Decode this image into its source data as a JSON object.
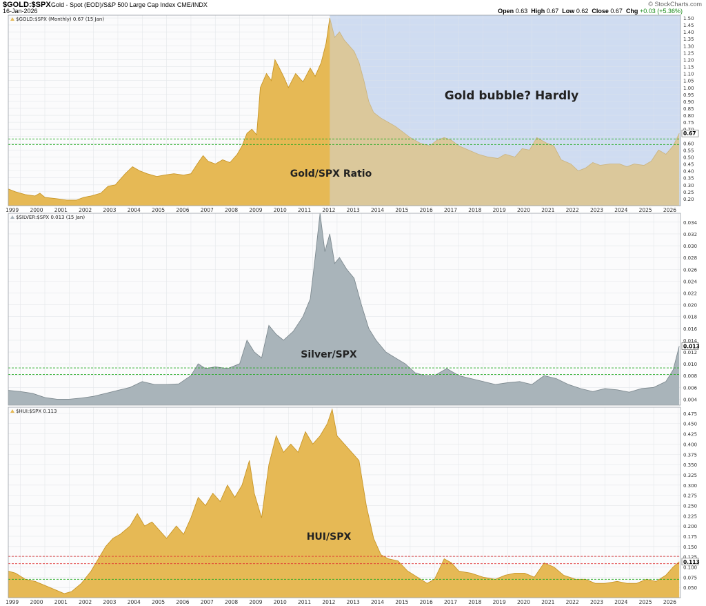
{
  "header": {
    "symbol": "$GOLD:$SPX",
    "description": "Gold - Spot (EOD)/S&P 500 Large Cap Index  CME/INDX",
    "date": "16-Jan-2026",
    "brand": "© StockCharts.com",
    "ohlc": {
      "open_label": "Open",
      "open": "0.63",
      "high_label": "High",
      "high": "0.67",
      "low_label": "Low",
      "low": "0.62",
      "close_label": "Close",
      "close": "0.67",
      "chg_label": "Chg",
      "chg": "+0.03 (+5.36%)"
    }
  },
  "colors": {
    "gold_fill": "#e6b955",
    "gold_line": "#c89628",
    "silver_fill": "#a9b4ba",
    "silver_line": "#7e8a90",
    "blue_shade": "#cfdcf1",
    "green_dashed": "#22aa22",
    "red_dashed": "#e03030",
    "panel_bg": "#fbfbfc",
    "grid": "#e4e7ea"
  },
  "chart_data": [
    {
      "type": "area",
      "legend": "$GOLD:$SPX (Monthly) 0.67 (15 Jan)",
      "annotation": "Gold bubble? Hardly",
      "label": "Gold/SPX Ratio",
      "last_value": "0.67",
      "y_range": [
        0.15,
        1.52
      ],
      "y_ticks": [
        "0.20",
        "0.25",
        "0.30",
        "0.35",
        "0.40",
        "0.45",
        "0.50",
        "0.55",
        "0.60",
        "0.65",
        "0.70",
        "0.75",
        "0.80",
        "0.85",
        "0.90",
        "0.95",
        "1.00",
        "1.05",
        "1.10",
        "1.15",
        "1.20",
        "1.25",
        "1.30",
        "1.35",
        "1.40",
        "1.45",
        "1.50"
      ],
      "shade_from": 2011.7,
      "green_lines": [
        0.59,
        0.63
      ],
      "red_lines": [],
      "points": [
        [
          1998.5,
          0.27
        ],
        [
          1998.8,
          0.25
        ],
        [
          1999.2,
          0.23
        ],
        [
          1999.6,
          0.22
        ],
        [
          1999.8,
          0.24
        ],
        [
          2000.0,
          0.21
        ],
        [
          2000.5,
          0.2
        ],
        [
          2000.9,
          0.19
        ],
        [
          2001.3,
          0.19
        ],
        [
          2001.6,
          0.21
        ],
        [
          2001.9,
          0.22
        ],
        [
          2002.3,
          0.24
        ],
        [
          2002.6,
          0.29
        ],
        [
          2002.9,
          0.3
        ],
        [
          2003.1,
          0.34
        ],
        [
          2003.3,
          0.38
        ],
        [
          2003.6,
          0.43
        ],
        [
          2003.9,
          0.4
        ],
        [
          2004.2,
          0.38
        ],
        [
          2004.6,
          0.36
        ],
        [
          2004.9,
          0.37
        ],
        [
          2005.3,
          0.38
        ],
        [
          2005.7,
          0.37
        ],
        [
          2006.0,
          0.38
        ],
        [
          2006.3,
          0.46
        ],
        [
          2006.5,
          0.51
        ],
        [
          2006.7,
          0.47
        ],
        [
          2007.0,
          0.45
        ],
        [
          2007.3,
          0.48
        ],
        [
          2007.6,
          0.46
        ],
        [
          2007.9,
          0.52
        ],
        [
          2008.1,
          0.58
        ],
        [
          2008.3,
          0.67
        ],
        [
          2008.5,
          0.7
        ],
        [
          2008.7,
          0.66
        ],
        [
          2008.85,
          1.0
        ],
        [
          2009.1,
          1.1
        ],
        [
          2009.3,
          1.05
        ],
        [
          2009.45,
          1.2
        ],
        [
          2009.6,
          1.15
        ],
        [
          2009.8,
          1.08
        ],
        [
          2010.0,
          1.0
        ],
        [
          2010.3,
          1.1
        ],
        [
          2010.6,
          1.04
        ],
        [
          2010.9,
          1.14
        ],
        [
          2011.1,
          1.08
        ],
        [
          2011.35,
          1.18
        ],
        [
          2011.55,
          1.32
        ],
        [
          2011.7,
          1.5
        ],
        [
          2011.9,
          1.36
        ],
        [
          2012.1,
          1.4
        ],
        [
          2012.3,
          1.34
        ],
        [
          2012.5,
          1.3
        ],
        [
          2012.7,
          1.26
        ],
        [
          2012.9,
          1.18
        ],
        [
          2013.1,
          1.05
        ],
        [
          2013.3,
          0.9
        ],
        [
          2013.5,
          0.82
        ],
        [
          2013.8,
          0.78
        ],
        [
          2014.1,
          0.75
        ],
        [
          2014.4,
          0.72
        ],
        [
          2014.7,
          0.68
        ],
        [
          2015.0,
          0.64
        ],
        [
          2015.4,
          0.6
        ],
        [
          2015.8,
          0.58
        ],
        [
          2016.1,
          0.62
        ],
        [
          2016.4,
          0.64
        ],
        [
          2016.7,
          0.62
        ],
        [
          2017.0,
          0.58
        ],
        [
          2017.4,
          0.55
        ],
        [
          2017.8,
          0.52
        ],
        [
          2018.2,
          0.5
        ],
        [
          2018.6,
          0.49
        ],
        [
          2018.9,
          0.52
        ],
        [
          2019.3,
          0.5
        ],
        [
          2019.6,
          0.56
        ],
        [
          2019.9,
          0.55
        ],
        [
          2020.2,
          0.64
        ],
        [
          2020.6,
          0.6
        ],
        [
          2020.9,
          0.58
        ],
        [
          2021.2,
          0.48
        ],
        [
          2021.6,
          0.45
        ],
        [
          2021.9,
          0.4
        ],
        [
          2022.2,
          0.42
        ],
        [
          2022.5,
          0.46
        ],
        [
          2022.8,
          0.44
        ],
        [
          2023.2,
          0.45
        ],
        [
          2023.6,
          0.45
        ],
        [
          2023.9,
          0.43
        ],
        [
          2024.2,
          0.45
        ],
        [
          2024.6,
          0.44
        ],
        [
          2024.9,
          0.47
        ],
        [
          2025.2,
          0.55
        ],
        [
          2025.5,
          0.52
        ],
        [
          2025.8,
          0.58
        ],
        [
          2026.05,
          0.67
        ]
      ]
    },
    {
      "type": "area",
      "legend": "$SILVER:$SPX 0.013 (15 Jan)",
      "label": "Silver/SPX",
      "last_value": "0.013",
      "y_range": [
        0.003,
        0.0355
      ],
      "y_ticks": [
        "0.004",
        "0.006",
        "0.008",
        "0.010",
        "0.012",
        "0.014",
        "0.016",
        "0.018",
        "0.020",
        "0.022",
        "0.024",
        "0.026",
        "0.028",
        "0.030",
        "0.032",
        "0.034"
      ],
      "green_lines": [
        0.0082,
        0.0093
      ],
      "red_lines": [],
      "points": [
        [
          1998.5,
          0.0055
        ],
        [
          1999.0,
          0.0053
        ],
        [
          1999.5,
          0.005
        ],
        [
          2000.0,
          0.0043
        ],
        [
          2000.5,
          0.004
        ],
        [
          2001.0,
          0.004
        ],
        [
          2001.5,
          0.0042
        ],
        [
          2002.0,
          0.0045
        ],
        [
          2002.5,
          0.005
        ],
        [
          2003.0,
          0.0055
        ],
        [
          2003.5,
          0.006
        ],
        [
          2004.0,
          0.007
        ],
        [
          2004.5,
          0.0065
        ],
        [
          2005.0,
          0.0065
        ],
        [
          2005.5,
          0.0066
        ],
        [
          2006.0,
          0.008
        ],
        [
          2006.3,
          0.01
        ],
        [
          2006.6,
          0.0092
        ],
        [
          2007.0,
          0.0095
        ],
        [
          2007.5,
          0.0092
        ],
        [
          2008.0,
          0.01
        ],
        [
          2008.3,
          0.014
        ],
        [
          2008.6,
          0.012
        ],
        [
          2008.9,
          0.011
        ],
        [
          2009.2,
          0.0165
        ],
        [
          2009.5,
          0.015
        ],
        [
          2009.8,
          0.014
        ],
        [
          2010.2,
          0.0155
        ],
        [
          2010.6,
          0.018
        ],
        [
          2010.9,
          0.021
        ],
        [
          2011.1,
          0.028
        ],
        [
          2011.3,
          0.0355
        ],
        [
          2011.5,
          0.029
        ],
        [
          2011.7,
          0.032
        ],
        [
          2011.9,
          0.027
        ],
        [
          2012.1,
          0.028
        ],
        [
          2012.4,
          0.026
        ],
        [
          2012.7,
          0.0245
        ],
        [
          2013.0,
          0.02
        ],
        [
          2013.3,
          0.016
        ],
        [
          2013.6,
          0.014
        ],
        [
          2014.0,
          0.012
        ],
        [
          2014.4,
          0.011
        ],
        [
          2014.8,
          0.01
        ],
        [
          2015.2,
          0.0085
        ],
        [
          2015.6,
          0.008
        ],
        [
          2016.0,
          0.008
        ],
        [
          2016.5,
          0.0092
        ],
        [
          2017.0,
          0.008
        ],
        [
          2017.5,
          0.0075
        ],
        [
          2018.0,
          0.007
        ],
        [
          2018.5,
          0.0065
        ],
        [
          2019.0,
          0.0068
        ],
        [
          2019.5,
          0.007
        ],
        [
          2020.0,
          0.0065
        ],
        [
          2020.5,
          0.008
        ],
        [
          2021.0,
          0.0075
        ],
        [
          2021.5,
          0.0065
        ],
        [
          2022.0,
          0.0058
        ],
        [
          2022.5,
          0.0053
        ],
        [
          2023.0,
          0.0058
        ],
        [
          2023.5,
          0.0056
        ],
        [
          2024.0,
          0.0052
        ],
        [
          2024.5,
          0.0058
        ],
        [
          2025.0,
          0.006
        ],
        [
          2025.5,
          0.007
        ],
        [
          2025.8,
          0.009
        ],
        [
          2026.05,
          0.013
        ]
      ]
    },
    {
      "type": "area",
      "legend": "$HUI:$SPX 0.113",
      "label": "HUI/SPX",
      "last_value": "0.113",
      "y_range": [
        0.025,
        0.49
      ],
      "y_ticks": [
        "0.050",
        "0.075",
        "0.100",
        "0.125",
        "0.150",
        "0.175",
        "0.200",
        "0.225",
        "0.250",
        "0.275",
        "0.300",
        "0.325",
        "0.350",
        "0.375",
        "0.400",
        "0.425",
        "0.450",
        "0.475"
      ],
      "green_lines": [
        0.07
      ],
      "red_lines": [
        0.108,
        0.126
      ],
      "points": [
        [
          1998.5,
          0.09
        ],
        [
          1998.8,
          0.085
        ],
        [
          1999.2,
          0.07
        ],
        [
          1999.6,
          0.065
        ],
        [
          2000.0,
          0.055
        ],
        [
          2000.4,
          0.045
        ],
        [
          2000.8,
          0.035
        ],
        [
          2001.1,
          0.04
        ],
        [
          2001.5,
          0.06
        ],
        [
          2001.9,
          0.09
        ],
        [
          2002.2,
          0.12
        ],
        [
          2002.5,
          0.15
        ],
        [
          2002.8,
          0.17
        ],
        [
          2003.1,
          0.18
        ],
        [
          2003.5,
          0.2
        ],
        [
          2003.8,
          0.23
        ],
        [
          2004.1,
          0.2
        ],
        [
          2004.4,
          0.21
        ],
        [
          2004.7,
          0.19
        ],
        [
          2005.0,
          0.17
        ],
        [
          2005.4,
          0.2
        ],
        [
          2005.7,
          0.18
        ],
        [
          2006.0,
          0.22
        ],
        [
          2006.3,
          0.27
        ],
        [
          2006.6,
          0.25
        ],
        [
          2006.9,
          0.28
        ],
        [
          2007.2,
          0.26
        ],
        [
          2007.5,
          0.3
        ],
        [
          2007.8,
          0.27
        ],
        [
          2008.1,
          0.3
        ],
        [
          2008.4,
          0.36
        ],
        [
          2008.6,
          0.28
        ],
        [
          2008.9,
          0.22
        ],
        [
          2009.2,
          0.35
        ],
        [
          2009.5,
          0.42
        ],
        [
          2009.8,
          0.38
        ],
        [
          2010.1,
          0.4
        ],
        [
          2010.4,
          0.38
        ],
        [
          2010.7,
          0.43
        ],
        [
          2011.0,
          0.4
        ],
        [
          2011.3,
          0.42
        ],
        [
          2011.6,
          0.45
        ],
        [
          2011.8,
          0.485
        ],
        [
          2012.0,
          0.42
        ],
        [
          2012.3,
          0.4
        ],
        [
          2012.6,
          0.38
        ],
        [
          2012.9,
          0.36
        ],
        [
          2013.2,
          0.25
        ],
        [
          2013.5,
          0.17
        ],
        [
          2013.8,
          0.13
        ],
        [
          2014.1,
          0.12
        ],
        [
          2014.5,
          0.115
        ],
        [
          2014.9,
          0.09
        ],
        [
          2015.3,
          0.075
        ],
        [
          2015.7,
          0.06
        ],
        [
          2016.0,
          0.07
        ],
        [
          2016.4,
          0.12
        ],
        [
          2016.7,
          0.11
        ],
        [
          2017.0,
          0.09
        ],
        [
          2017.5,
          0.085
        ],
        [
          2018.0,
          0.075
        ],
        [
          2018.5,
          0.07
        ],
        [
          2018.9,
          0.08
        ],
        [
          2019.3,
          0.085
        ],
        [
          2019.7,
          0.085
        ],
        [
          2020.1,
          0.075
        ],
        [
          2020.5,
          0.11
        ],
        [
          2020.9,
          0.1
        ],
        [
          2021.3,
          0.08
        ],
        [
          2021.8,
          0.07
        ],
        [
          2022.2,
          0.07
        ],
        [
          2022.6,
          0.06
        ],
        [
          2023.0,
          0.06
        ],
        [
          2023.5,
          0.065
        ],
        [
          2023.9,
          0.06
        ],
        [
          2024.3,
          0.06
        ],
        [
          2024.7,
          0.07
        ],
        [
          2025.1,
          0.065
        ],
        [
          2025.5,
          0.08
        ],
        [
          2025.8,
          0.1
        ],
        [
          2026.05,
          0.113
        ]
      ]
    }
  ],
  "x_axis": {
    "range": [
      1998.5,
      2026.1
    ],
    "tick_labels": [
      "1999",
      "2000",
      "2001",
      "2002",
      "2003",
      "2004",
      "2005",
      "2006",
      "2007",
      "2008",
      "2009",
      "2010",
      "2011",
      "2012",
      "2013",
      "2014",
      "2015",
      "2016",
      "2017",
      "2018",
      "2019",
      "2020",
      "2021",
      "2022",
      "2023",
      "2024",
      "2025",
      "2026"
    ]
  }
}
